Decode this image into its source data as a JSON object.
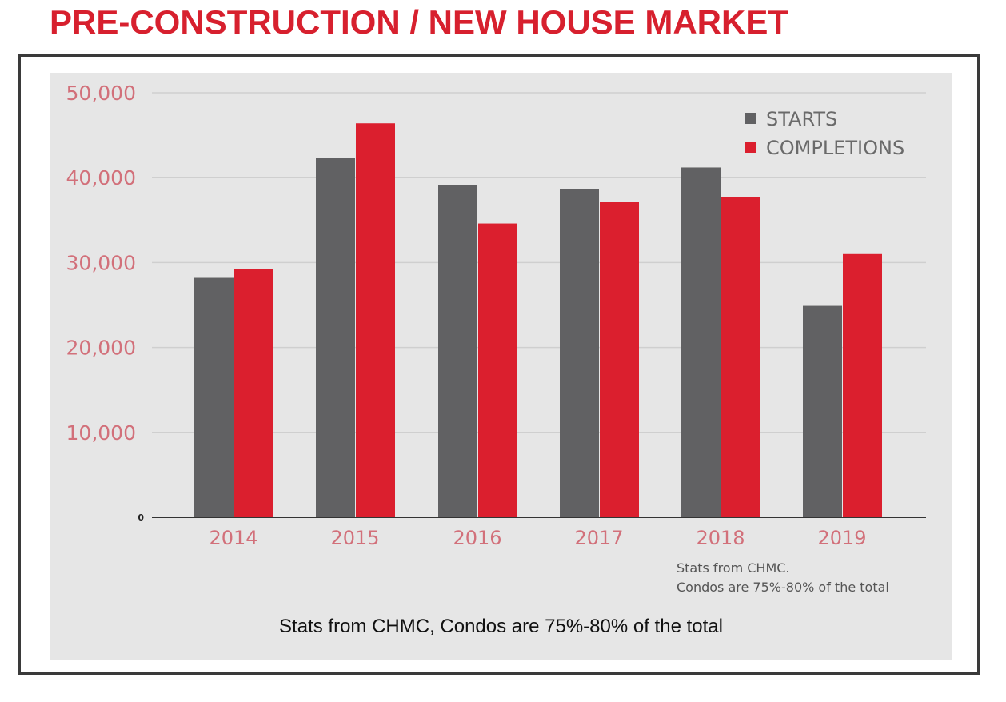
{
  "page": {
    "title": "PRE-CONSTRUCTION / NEW HOUSE MARKET",
    "caption": "Stats from CHMC, Condos are 75%-80% of the total"
  },
  "colors": {
    "title": "#d7202e",
    "starts": "#616163",
    "completions": "#db1f2e",
    "panel": "#e6e6e6",
    "tick_label": "#d2707a"
  },
  "chart_data": {
    "type": "bar",
    "categories": [
      "2014",
      "2015",
      "2016",
      "2017",
      "2018",
      "2019"
    ],
    "series": [
      {
        "name": "STARTS",
        "values": [
          28200,
          42300,
          39100,
          38700,
          41200,
          24900
        ]
      },
      {
        "name": "COMPLETIONS",
        "values": [
          29200,
          46400,
          34600,
          37100,
          37700,
          31000
        ]
      }
    ],
    "ylim": [
      0,
      50000
    ],
    "yticks": [
      0,
      10000,
      20000,
      30000,
      40000,
      50000
    ],
    "ytick_labels": [
      "0",
      "10,000",
      "20,000",
      "30,000",
      "40,000",
      "50,000"
    ],
    "grid": true,
    "legend_position": "top-right",
    "annotation": [
      "Stats from CHMC.",
      "Condos are 75%-80% of the total"
    ]
  }
}
